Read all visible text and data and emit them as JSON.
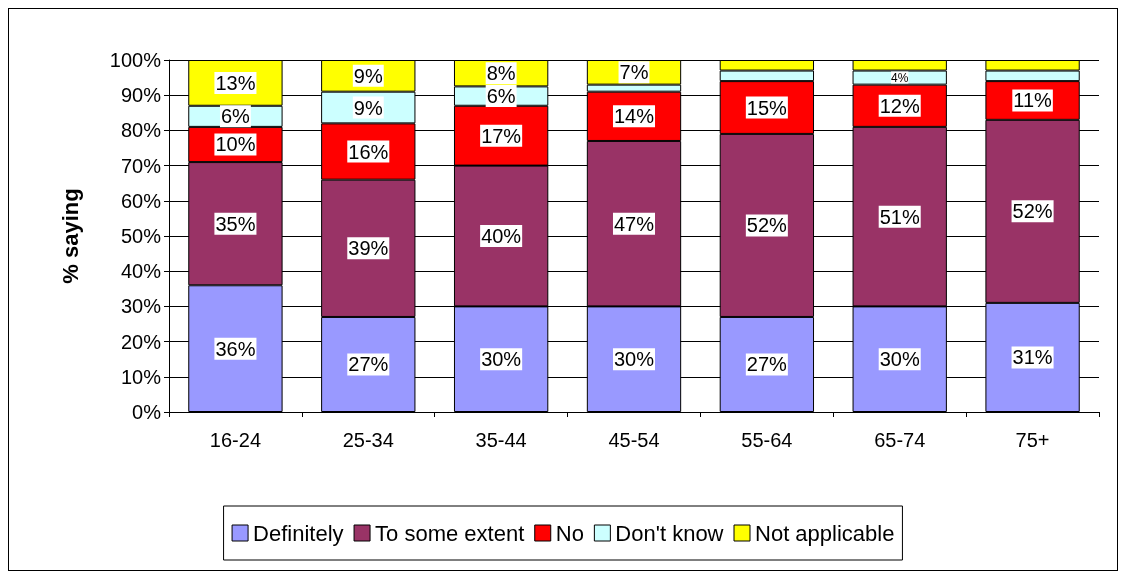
{
  "chart_data": {
    "type": "bar",
    "stacked": true,
    "ylabel": "% saying",
    "categories": [
      "16-24",
      "25-34",
      "35-44",
      "45-54",
      "55-64",
      "65-74",
      "75+"
    ],
    "series": [
      {
        "name": "Definitely",
        "color": "#9999ff",
        "values": [
          36,
          27,
          30,
          30,
          27,
          30,
          31
        ],
        "value_labels": [
          "36%",
          "27%",
          "30%",
          "30%",
          "27%",
          "30%",
          "31%"
        ]
      },
      {
        "name": "To some extent",
        "color": "#993366",
        "values": [
          35,
          39,
          40,
          47,
          52,
          51,
          52
        ],
        "value_labels": [
          "35%",
          "39%",
          "40%",
          "47%",
          "52%",
          "51%",
          "52%"
        ]
      },
      {
        "name": "No",
        "color": "#ff0000",
        "values": [
          10,
          16,
          17,
          14,
          15,
          12,
          11
        ],
        "value_labels": [
          "10%",
          "16%",
          "17%",
          "14%",
          "15%",
          "12%",
          "11%"
        ]
      },
      {
        "name": "Don't know",
        "color": "#ccffff",
        "values": [
          6,
          9,
          5.5,
          2,
          3,
          4,
          3
        ],
        "value_labels": [
          "6%",
          "9%",
          "6%",
          null,
          null,
          "4%",
          null
        ]
      },
      {
        "name": "Not applicable",
        "color": "#ffff00",
        "values": [
          13,
          9,
          7.5,
          7,
          3,
          3,
          3
        ],
        "value_labels": [
          "13%",
          "9%",
          "8%",
          "7%",
          null,
          null,
          null
        ]
      }
    ],
    "ylim": [
      0,
      100
    ],
    "yticks": [
      {
        "value": 0,
        "label": "0%"
      },
      {
        "value": 10,
        "label": "10%"
      },
      {
        "value": 20,
        "label": "20%"
      },
      {
        "value": 30,
        "label": "30%"
      },
      {
        "value": 40,
        "label": "40%"
      },
      {
        "value": 50,
        "label": "50%"
      },
      {
        "value": 60,
        "label": "60%"
      },
      {
        "value": 70,
        "label": "70%"
      },
      {
        "value": 80,
        "label": "80%"
      },
      {
        "value": 90,
        "label": "90%"
      },
      {
        "value": 100,
        "label": "100%"
      }
    ],
    "grid": "y",
    "legend": "bottom"
  }
}
